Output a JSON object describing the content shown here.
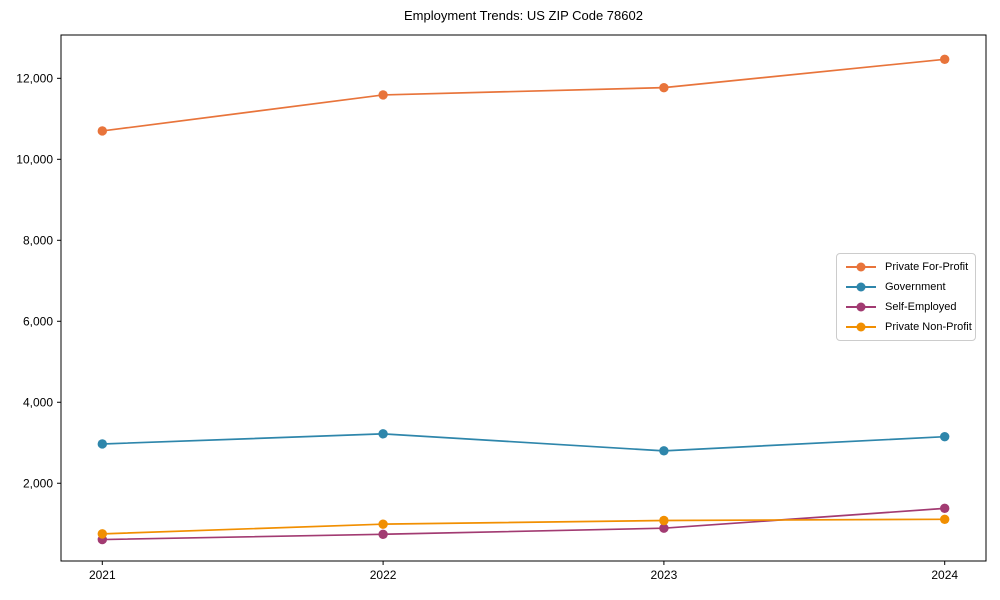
{
  "chart_data": {
    "type": "line",
    "title": "Employment Trends: US ZIP Code 78602",
    "categories": [
      "2021",
      "2022",
      "2023",
      "2024"
    ],
    "series": [
      {
        "name": "Private For-Profit",
        "color": "#E8743B",
        "values": [
          10700,
          11590,
          11770,
          12470
        ]
      },
      {
        "name": "Government",
        "color": "#2E86AB",
        "values": [
          2970,
          3220,
          2800,
          3150
        ]
      },
      {
        "name": "Self-Employed",
        "color": "#A23B72",
        "values": [
          610,
          740,
          890,
          1380
        ]
      },
      {
        "name": "Private Non-Profit",
        "color": "#F18F01",
        "values": [
          750,
          990,
          1080,
          1110
        ]
      }
    ],
    "xlabel": "",
    "ylabel": "",
    "ylim": [
      80,
      13070
    ],
    "yticks": [
      2000,
      4000,
      6000,
      8000,
      10000,
      12000
    ],
    "grid": false,
    "legend_position": "center-right",
    "axis_color": "#000000",
    "tick_label_color": "#000000"
  }
}
